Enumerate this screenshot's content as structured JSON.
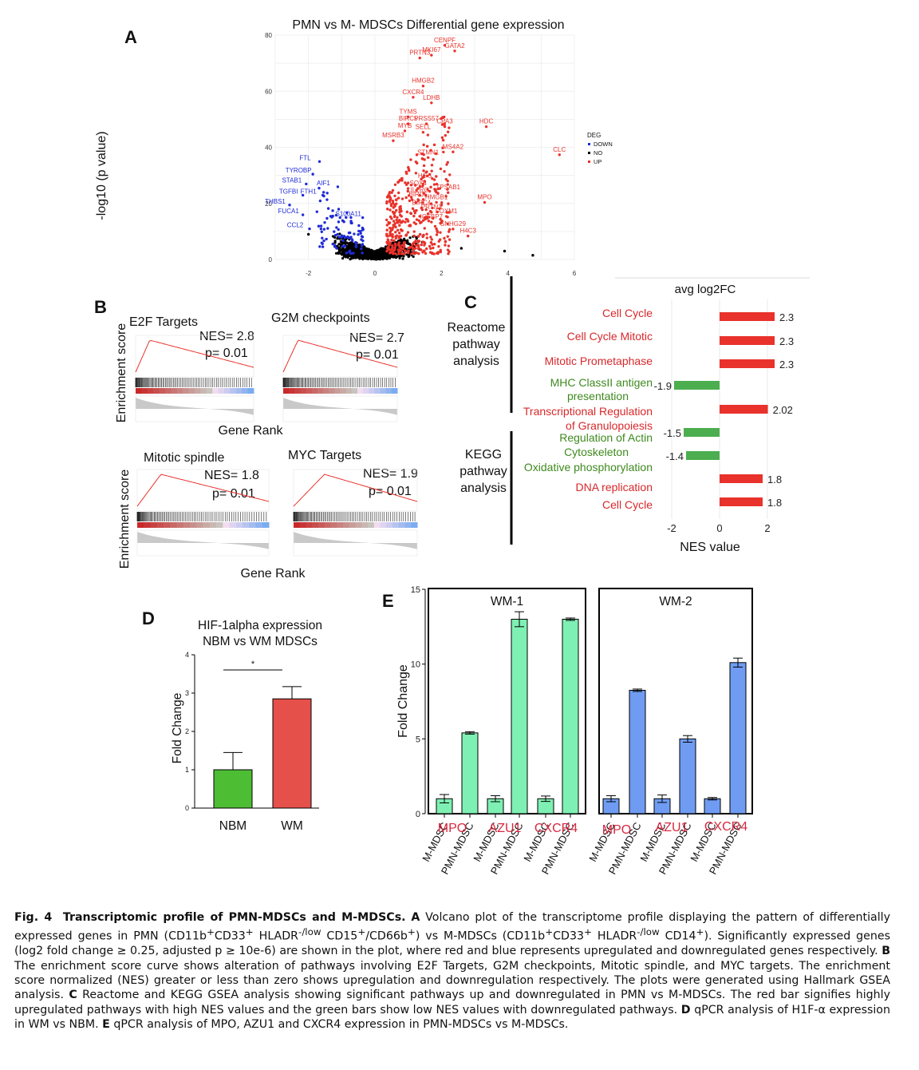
{
  "panels": {
    "A": {
      "letter": "A",
      "title": "PMN vs M- MDSCs Differential gene expression",
      "ylabel": "-log10 (p value)",
      "legend": {
        "title": "DEG",
        "items": [
          {
            "label": "DOWN",
            "color": "#1f2bd6"
          },
          {
            "label": "NO",
            "color": "#000000"
          },
          {
            "label": "UP",
            "color": "#e8322b"
          }
        ]
      }
    },
    "B": {
      "letter": "B",
      "ylabel": "Enrichment score",
      "xlabel": "Gene Rank",
      "plots": [
        {
          "title": "E2F Targets",
          "nes": "NES= 2.8",
          "p": "p= 0.01"
        },
        {
          "title": "G2M checkpoints",
          "nes": "NES= 2.7",
          "p": "p= 0.01"
        },
        {
          "title": "Mitotic spindle",
          "nes": "NES= 1.8",
          "p": "p= 0.01"
        },
        {
          "title": "MYC Targets",
          "nes": "NES= 1.9",
          "p": "p= 0.01"
        }
      ]
    },
    "C": {
      "letter": "C",
      "group_labels": [
        "Reactome pathway analysis",
        "KEGG pathway analysis"
      ],
      "title": "avg log2FC",
      "xlabel": "NES value"
    },
    "D": {
      "letter": "D",
      "title_line1": "HIF-1alpha expression",
      "title_line2": "NBM vs WM MDSCs",
      "ylabel": "Fold Change",
      "significance": "*"
    },
    "E": {
      "letter": "E",
      "ylabel": "Fold Change",
      "groups": [
        "WM-1",
        "WM-2"
      ]
    }
  },
  "chart_data": [
    {
      "id": "A-volcano",
      "type": "scatter",
      "title": "PMN vs M- MDSCs Differential gene expression",
      "xlabel": "",
      "ylabel": "-log10 (p value)",
      "xlim": [
        -3,
        6
      ],
      "ylim": [
        0,
        80
      ],
      "xticks": [
        -2,
        0,
        2,
        4,
        6
      ],
      "yticks": [
        0,
        20,
        40,
        60,
        80
      ],
      "grid": true,
      "legend_position": "right",
      "labels_up": [
        {
          "gene": "CENPF",
          "x": 2.1,
          "y": 77.5
        },
        {
          "gene": "GATA2",
          "x": 2.4,
          "y": 75.5
        },
        {
          "gene": "PRTN3",
          "x": 1.35,
          "y": 73
        },
        {
          "gene": "MKI67",
          "x": 1.7,
          "y": 74
        },
        {
          "gene": "HMGB2",
          "x": 1.45,
          "y": 63
        },
        {
          "gene": "CXCR4",
          "x": 1.15,
          "y": 59
        },
        {
          "gene": "LDHB",
          "x": 1.7,
          "y": 57
        },
        {
          "gene": "TYMS",
          "x": 1.0,
          "y": 52
        },
        {
          "gene": "BIRC5",
          "x": 1.0,
          "y": 49.5
        },
        {
          "gene": "PRSS57",
          "x": 1.55,
          "y": 49.5
        },
        {
          "gene": "CPA3",
          "x": 2.1,
          "y": 48.5
        },
        {
          "gene": "HDC",
          "x": 3.35,
          "y": 48.5
        },
        {
          "gene": "MYB",
          "x": 0.9,
          "y": 47
        },
        {
          "gene": "SELL",
          "x": 1.45,
          "y": 46.5
        },
        {
          "gene": "MSRB3",
          "x": 0.55,
          "y": 43.5
        },
        {
          "gene": "MS4A2",
          "x": 2.35,
          "y": 39.5
        },
        {
          "gene": "CLC",
          "x": 5.55,
          "y": 38.5
        },
        {
          "gene": "STMN1",
          "x": 1.6,
          "y": 37.5
        },
        {
          "gene": "H1-5",
          "x": 1.5,
          "y": 29
        },
        {
          "gene": "SOX4",
          "x": 1.3,
          "y": 26.5
        },
        {
          "gene": "TPSAB1",
          "x": 2.2,
          "y": 25
        },
        {
          "gene": "IL2RG",
          "x": 1.35,
          "y": 24
        },
        {
          "gene": "BIRC5",
          "x": 1.3,
          "y": 22.5
        },
        {
          "gene": "HMGB1",
          "x": 1.85,
          "y": 21.5
        },
        {
          "gene": "MPO",
          "x": 3.3,
          "y": 21.5
        },
        {
          "gene": "BIRC4",
          "x": 1.4,
          "y": 19.5
        },
        {
          "gene": "PRTN3",
          "x": 1.7,
          "y": 18
        },
        {
          "gene": "FOXM1",
          "x": 2.15,
          "y": 16.5
        },
        {
          "gene": "IGFBP7",
          "x": 1.7,
          "y": 14.5
        },
        {
          "gene": "SNHG29",
          "x": 2.35,
          "y": 12
        },
        {
          "gene": "H4C3",
          "x": 2.8,
          "y": 9.5
        }
      ],
      "labels_down": [
        {
          "gene": "FTL",
          "x": -2.1,
          "y": 35.5
        },
        {
          "gene": "TYROBP",
          "x": -2.3,
          "y": 31
        },
        {
          "gene": "STAB1",
          "x": -2.5,
          "y": 27.5
        },
        {
          "gene": "AIF1",
          "x": -1.55,
          "y": 26.5
        },
        {
          "gene": "TGFBI",
          "x": -2.6,
          "y": 23.5
        },
        {
          "gene": "FTH1",
          "x": -2.0,
          "y": 23.5
        },
        {
          "gene": "THBS1",
          "x": -3.0,
          "y": 20
        },
        {
          "gene": "FUCA1",
          "x": -2.6,
          "y": 16.5
        },
        {
          "gene": "S100A11",
          "x": -0.8,
          "y": 15.5
        },
        {
          "gene": "CCL2",
          "x": -2.4,
          "y": 11.5
        }
      ]
    },
    {
      "id": "C-nes",
      "type": "bar",
      "orientation": "horizontal",
      "categories": [
        "Cell Cycle",
        "Cell Cycle Mitotic",
        "Mitotic Prometaphase",
        "MHC ClassII antigen presentation",
        "Transcriptional Regulation of Granulopoiesis",
        "Regulation of Actin Cytoskeleton",
        "Oxidative phosphorylation",
        "DNA replication",
        "Cell Cycle"
      ],
      "values": [
        2.3,
        2.3,
        2.3,
        -1.9,
        2.02,
        -1.5,
        -1.4,
        1.8,
        1.8
      ],
      "value_labels": [
        "2.3",
        "2.3",
        "2.3",
        "-1.9",
        "2.02",
        "-1.5",
        "-1.4",
        "1.8",
        "1.8"
      ],
      "colors": [
        "#e8322b",
        "#e8322b",
        "#e8322b",
        "#4cae4f",
        "#e8322b",
        "#4cae4f",
        "#4cae4f",
        "#e8322b",
        "#e8322b"
      ],
      "xlabel": "NES value",
      "xlim": [
        -3,
        3
      ],
      "xticks": [
        -2,
        0,
        2
      ]
    },
    {
      "id": "D-hif",
      "type": "bar",
      "categories": [
        "NBM",
        "WM"
      ],
      "values": [
        1.0,
        2.85
      ],
      "errors": [
        0.45,
        0.32
      ],
      "colors": [
        "#4dbd34",
        "#e5504b"
      ],
      "ylabel": "Fold Change",
      "ylim": [
        0,
        4
      ],
      "yticks": [
        0,
        1,
        2,
        3,
        4
      ]
    },
    {
      "id": "E-qpcr",
      "type": "bar",
      "ylabel": "Fold Change",
      "ylim": [
        0,
        15
      ],
      "yticks": [
        0,
        5,
        10,
        15
      ],
      "groups": [
        {
          "name": "WM-1",
          "color": "#7ff0b3",
          "genes": [
            "MPO",
            "AZU1",
            "CXCR4"
          ],
          "categories": [
            "M-MDSC",
            "PMN-MDSC",
            "M-MDSC",
            "PMN-MDSC",
            "M-MDSC",
            "PMN-MDSC"
          ],
          "values": [
            1.0,
            5.4,
            1.0,
            13.0,
            1.0,
            13.0
          ],
          "errors": [
            0.28,
            0.08,
            0.2,
            0.5,
            0.18,
            0.08
          ]
        },
        {
          "name": "WM-2",
          "color": "#6f9cf2",
          "genes": [
            "MPO",
            "AZU1",
            "CXCR4"
          ],
          "categories": [
            "M-MDSC",
            "PMN-MDSC",
            "M-MDSC",
            "PMN-MDSC",
            "M-MDSC",
            "PMN-MDSC"
          ],
          "values": [
            1.0,
            8.25,
            1.0,
            5.0,
            1.0,
            10.1
          ],
          "errors": [
            0.2,
            0.08,
            0.25,
            0.22,
            0.08,
            0.3
          ]
        }
      ]
    }
  ],
  "caption": {
    "fig": "Fig. 4",
    "title": "Transcriptomic profile of PMN-MDSCs and M-MDSCs.",
    "a_letter": "A",
    "a_text_1": "Volcano plot of the transcriptome profile displaying the pattern of differentially expressed genes in PMN (CD11b",
    "a_sup1": "+",
    "a_text_2": "CD33",
    "a_sup2": "+",
    "a_text_3": " HLADR",
    "a_sup3": "-/low",
    "a_text_4": " CD15",
    "a_sup4": "+",
    "a_text_5": "/CD66b",
    "a_sup5": "+",
    "a_text_6": ") vs M-MDSCs (CD11b",
    "a_sup6": "+",
    "a_text_7": "CD33",
    "a_sup7": "+",
    "a_text_8": " HLADR",
    "a_sup8": "-/low",
    "a_text_9": " CD14",
    "a_sup9": "+",
    "a_text_10": "). Significantly expressed genes (log2 fold change ≥ 0.25, adjusted p ≥ 10e-6) are shown in the plot, where red and blue represents upregulated and downregulated genes respectively.",
    "b_letter": "B",
    "b_text": "The enrichment score curve shows alteration of pathways involving E2F Targets, G2M checkpoints, Mitotic spindle, and MYC targets. The enrichment score normalized (NES) greater or less than zero shows upregulation and downregulation respectively. The plots were generated using Hallmark GSEA analysis.",
    "c_letter": "C",
    "c_text": "Reactome and KEGG GSEA analysis showing significant pathways up and downregulated in PMN vs M-MDSCs. The red bar signifies highly upregulated pathways with high NES values and the green bars show low NES values with downregulated pathways.",
    "d_letter": "D",
    "d_text": "qPCR analysis of H1F-α expression in WM vs NBM.",
    "e_letter": "E",
    "e_text": "qPCR analysis of MPO, AZU1 and CXCR4 expression in PMN-MDSCs vs M-MDSCs."
  }
}
